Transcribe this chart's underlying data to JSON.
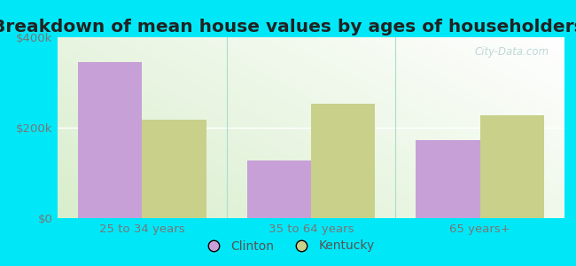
{
  "title": "Breakdown of mean house values by ages of householders",
  "categories": [
    "25 to 34 years",
    "35 to 64 years",
    "65 years+"
  ],
  "clinton_values": [
    345000,
    128000,
    172000
  ],
  "kentucky_values": [
    218000,
    252000,
    228000
  ],
  "clinton_color": "#c8a0d8",
  "kentucky_color": "#c8d08a",
  "background_outer": "#00e8f8",
  "ylim": [
    0,
    400000
  ],
  "yticks": [
    0,
    200000,
    400000
  ],
  "ytick_labels": [
    "$0",
    "$200k",
    "$400k"
  ],
  "legend_labels": [
    "Clinton",
    "Kentucky"
  ],
  "bar_width": 0.38,
  "title_fontsize": 14.5,
  "tick_fontsize": 9.5,
  "legend_fontsize": 10,
  "watermark_text": "City-Data.com"
}
